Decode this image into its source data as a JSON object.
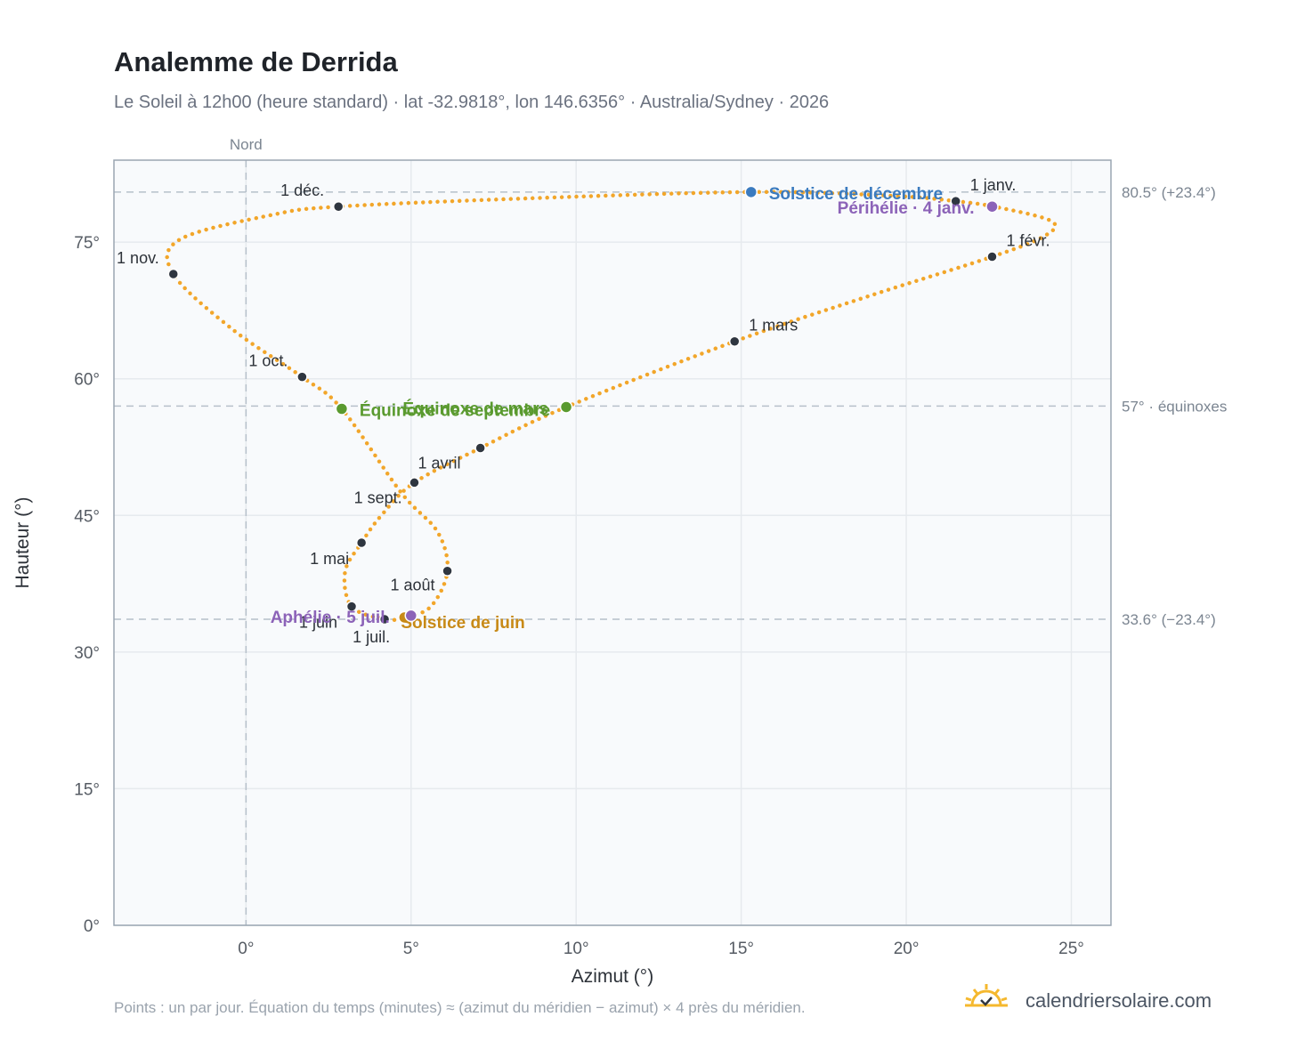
{
  "header": {
    "title": "Analemme de Derrida",
    "subtitle": "Le Soleil à 12h00 (heure standard) · lat -32.9818°, lon 146.6356° · Australia/Sydney · 2026"
  },
  "footer": {
    "note": "Points : un par jour. Équation du temps (minutes) ≈ (azimut du méridien − azimut) × 4 près du méridien.",
    "brand": "calendriersolaire.com",
    "brand_icon": "sun-icon"
  },
  "colors": {
    "curve": "#f2a62a",
    "month_dot": "#2f3640",
    "equinox": "#5a9a2f",
    "solstice_dec": "#3b7bbf",
    "solstice_jun": "#c88a17",
    "apsis": "#8c63b8",
    "grid": "#e6eaee",
    "plot_bg": "#f8fafc",
    "refline": "#b6c0ca"
  },
  "chart_data": {
    "type": "scatter",
    "xlabel": "Azimut (°)",
    "ylabel": "Hauteur (°)",
    "xlim": [
      -4,
      26.2
    ],
    "ylim": [
      0,
      84
    ],
    "x_ticks": [
      {
        "value": 0,
        "label": "0°"
      },
      {
        "value": 5,
        "label": "5°"
      },
      {
        "value": 10,
        "label": "10°"
      },
      {
        "value": 15,
        "label": "15°"
      },
      {
        "value": 20,
        "label": "20°"
      },
      {
        "value": 25,
        "label": "25°"
      }
    ],
    "y_ticks": [
      {
        "value": 0,
        "label": "0°"
      },
      {
        "value": 15,
        "label": "15°"
      },
      {
        "value": 30,
        "label": "30°"
      },
      {
        "value": 45,
        "label": "45°"
      },
      {
        "value": 60,
        "label": "60°"
      },
      {
        "value": 75,
        "label": "75°"
      }
    ],
    "grid": true,
    "north_line": {
      "value": 0,
      "label": "Nord"
    },
    "reference_lines": [
      {
        "value": 80.5,
        "label": "80.5° (+23.4°)"
      },
      {
        "value": 57,
        "label": "57° · équinoxes"
      },
      {
        "value": 33.6,
        "label": "33.6° (−23.4°)"
      }
    ],
    "analemma_points": [
      {
        "x": 21.5,
        "y": 79.5
      },
      {
        "x": 22.8,
        "y": 78.8
      },
      {
        "x": 24.4,
        "y": 77.3
      },
      {
        "x": 24.2,
        "y": 75.7
      },
      {
        "x": 22.6,
        "y": 73.4
      },
      {
        "x": 18.8,
        "y": 69.0
      },
      {
        "x": 14.8,
        "y": 64.1
      },
      {
        "x": 9.7,
        "y": 56.9
      },
      {
        "x": 7.1,
        "y": 52.4
      },
      {
        "x": 5.1,
        "y": 48.6
      },
      {
        "x": 4.1,
        "y": 45.0
      },
      {
        "x": 3.5,
        "y": 42.0
      },
      {
        "x": 3.0,
        "y": 38.8
      },
      {
        "x": 3.2,
        "y": 35.0
      },
      {
        "x": 4.2,
        "y": 33.6
      },
      {
        "x": 4.8,
        "y": 33.8
      },
      {
        "x": 5.6,
        "y": 35.0
      },
      {
        "x": 6.1,
        "y": 38.9
      },
      {
        "x": 5.8,
        "y": 43.2
      },
      {
        "x": 4.7,
        "y": 47.5
      },
      {
        "x": 2.9,
        "y": 56.7
      },
      {
        "x": 1.7,
        "y": 60.2
      },
      {
        "x": -0.4,
        "y": 65.4
      },
      {
        "x": -2.2,
        "y": 71.5
      },
      {
        "x": -2.0,
        "y": 75.3
      },
      {
        "x": 0.8,
        "y": 78.0
      },
      {
        "x": 2.8,
        "y": 78.9
      },
      {
        "x": 8.5,
        "y": 79.8
      },
      {
        "x": 15.3,
        "y": 80.5
      },
      {
        "x": 19.5,
        "y": 80.1
      },
      {
        "x": 21.5,
        "y": 79.5
      }
    ],
    "month_markers": [
      {
        "label": "1 janv.",
        "x": 21.5,
        "y": 79.5,
        "anchor": "start",
        "dx": 16,
        "dy": -12
      },
      {
        "label": "1 févr.",
        "x": 22.6,
        "y": 73.4,
        "anchor": "start",
        "dx": 16,
        "dy": -12
      },
      {
        "label": "1 mars",
        "x": 14.8,
        "y": 64.1,
        "anchor": "start",
        "dx": 16,
        "dy": -12
      },
      {
        "label": "1 avril",
        "x": 5.1,
        "y": 48.6,
        "anchor": "start",
        "dx": 4,
        "dy": -16
      },
      {
        "label": "1 mai",
        "x": 3.5,
        "y": 42.0,
        "anchor": "end",
        "dx": -14,
        "dy": 24
      },
      {
        "label": "1 juin",
        "x": 3.2,
        "y": 35.0,
        "anchor": "end",
        "dx": -16,
        "dy": 24
      },
      {
        "label": "1 juil.",
        "x": 4.2,
        "y": 33.6,
        "anchor": "end",
        "dx": 6,
        "dy": 26
      },
      {
        "label": "1 août",
        "x": 6.1,
        "y": 38.9,
        "anchor": "end",
        "dx": -14,
        "dy": 22
      },
      {
        "label": "1 sept.",
        "x": 7.1,
        "y": 52.4,
        "anchor": "end",
        "dx": -88,
        "dy": 62
      },
      {
        "label": "1 oct.",
        "x": 1.7,
        "y": 60.2,
        "anchor": "end",
        "dx": -16,
        "dy": -12
      },
      {
        "label": "1 nov.",
        "x": -2.2,
        "y": 71.5,
        "anchor": "end",
        "dx": -16,
        "dy": -12
      },
      {
        "label": "1 déc.",
        "x": 2.8,
        "y": 78.9,
        "anchor": "end",
        "dx": -16,
        "dy": -12
      }
    ],
    "events": [
      {
        "label": "Équinoxe de mars",
        "x": 9.7,
        "y": 56.9,
        "color": "#5a9a2f",
        "anchor": "end",
        "dx": -20,
        "dy": 8
      },
      {
        "label": "Équinoxe de septembre",
        "x": 2.9,
        "y": 56.7,
        "color": "#5a9a2f",
        "anchor": "start",
        "dx": 20,
        "dy": 8
      },
      {
        "label": "Solstice de décembre",
        "x": 15.3,
        "y": 80.5,
        "color": "#3b7bbf",
        "anchor": "start",
        "dx": 20,
        "dy": 8
      },
      {
        "label": "Solstice de juin",
        "x": 4.8,
        "y": 33.8,
        "color": "#c88a17",
        "anchor": "start",
        "dx": -4,
        "dy": 12
      },
      {
        "label": "Périhélie · 4 janv.",
        "x": 22.6,
        "y": 78.9,
        "color": "#8c63b8",
        "anchor": "end",
        "dx": -20,
        "dy": 8
      },
      {
        "label": "Aphélie · 5 juil.",
        "x": 5.0,
        "y": 34.0,
        "color": "#8c63b8",
        "anchor": "end",
        "dx": -24,
        "dy": 8
      }
    ]
  }
}
